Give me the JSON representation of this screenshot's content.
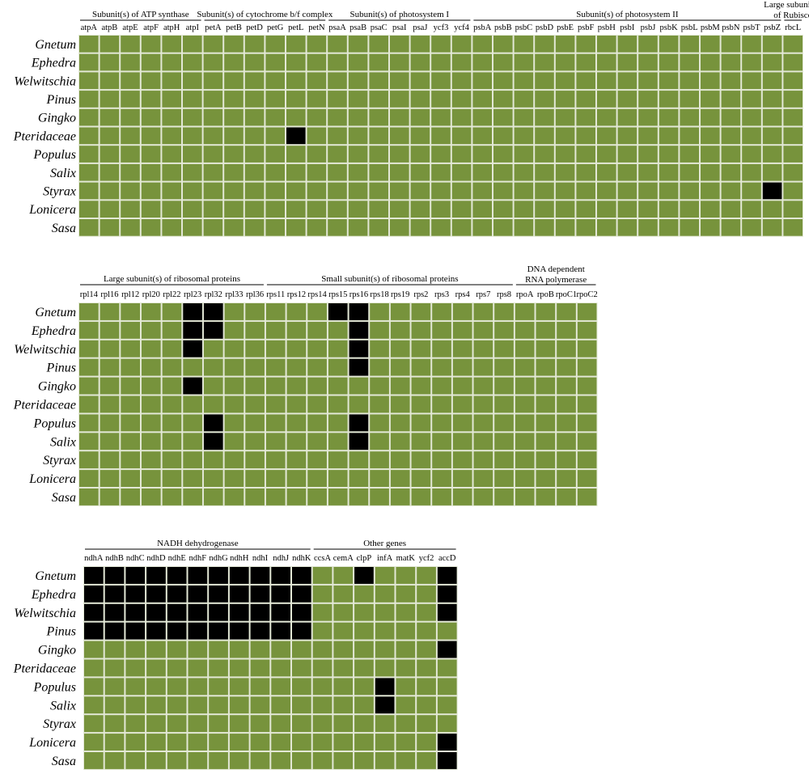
{
  "colors": {
    "present": "#77933C",
    "absent": "#000000",
    "gridline": "#E3E8D6"
  },
  "taxa": [
    "Gnetum",
    "Ephedra",
    "Welwitschia",
    "Pinus",
    "Gingko",
    "Pteridaceae",
    "Populus",
    "Salix",
    "Styrax",
    "Lonicera",
    "Sasa"
  ],
  "panels": [
    {
      "id": "panel-1",
      "groups": [
        {
          "name": "Subunit(s) of ATP synthase",
          "genes": [
            "atpA",
            "atpB",
            "atpE",
            "atpF",
            "atpH",
            "atpI"
          ]
        },
        {
          "name": "Subunit(s) of cytochrome b/f complex",
          "genes": [
            "petA",
            "petB",
            "petD",
            "petG",
            "petL",
            "petN"
          ]
        },
        {
          "name": "Subunit(s) of photosystem I",
          "genes": [
            "psaA",
            "psaB",
            "psaC",
            "psaI",
            "psaJ",
            "ycf3",
            "ycf4"
          ]
        },
        {
          "name": "Subunit(s) of photosystem II",
          "genes": [
            "psbA",
            "psbB",
            "psbC",
            "psbD",
            "psbE",
            "psbF",
            "psbH",
            "psbI",
            "psbJ",
            "psbK",
            "psbL",
            "psbM",
            "psbN",
            "psbT",
            "psbZ"
          ]
        },
        {
          "name": "Large subunit(s) of Rubisco",
          "genes": [
            "rbcL"
          ]
        }
      ],
      "absent": [
        {
          "taxon": "Pteridaceae",
          "gene": "petL"
        },
        {
          "taxon": "Styrax",
          "gene": "psbZ"
        }
      ]
    },
    {
      "id": "panel-2",
      "groups": [
        {
          "name": "Large subunit(s) of ribosomal proteins",
          "genes": [
            "rpl14",
            "rpl16",
            "rpl12",
            "rpl20",
            "rpl22",
            "rpl23",
            "rpl32",
            "rpl33",
            "rpl36"
          ]
        },
        {
          "name": "Small subunit(s) of ribosomal proteins",
          "genes": [
            "rps11",
            "rps12",
            "rps14",
            "rps15",
            "rps16",
            "rps18",
            "rps19",
            "rps2",
            "rps3",
            "rps4",
            "rps7",
            "rps8"
          ]
        },
        {
          "name": "DNA dependent RNA polymerase",
          "genes": [
            "rpoA",
            "rpoB",
            "rpoC1",
            "rpoC2"
          ]
        }
      ],
      "absent": [
        {
          "taxon": "Gnetum",
          "gene": "rpl23"
        },
        {
          "taxon": "Gnetum",
          "gene": "rpl32"
        },
        {
          "taxon": "Gnetum",
          "gene": "rps15"
        },
        {
          "taxon": "Gnetum",
          "gene": "rps16"
        },
        {
          "taxon": "Ephedra",
          "gene": "rpl23"
        },
        {
          "taxon": "Ephedra",
          "gene": "rpl32"
        },
        {
          "taxon": "Ephedra",
          "gene": "rps16"
        },
        {
          "taxon": "Welwitschia",
          "gene": "rpl23"
        },
        {
          "taxon": "Welwitschia",
          "gene": "rps16"
        },
        {
          "taxon": "Pinus",
          "gene": "rps16"
        },
        {
          "taxon": "Gingko",
          "gene": "rpl23"
        },
        {
          "taxon": "Populus",
          "gene": "rpl32"
        },
        {
          "taxon": "Populus",
          "gene": "rps16"
        },
        {
          "taxon": "Salix",
          "gene": "rpl32"
        },
        {
          "taxon": "Salix",
          "gene": "rps16"
        }
      ]
    },
    {
      "id": "panel-3",
      "groups": [
        {
          "name": "NADH dehydrogenase",
          "genes": [
            "ndhA",
            "ndhB",
            "ndhC",
            "ndhD",
            "ndhE",
            "ndhF",
            "ndhG",
            "ndhH",
            "ndhI",
            "ndhJ",
            "ndhK"
          ]
        },
        {
          "name": "Other genes",
          "genes": [
            "ccsA",
            "cemA",
            "clpP",
            "infA",
            "matK",
            "ycf2",
            "accD"
          ]
        }
      ],
      "absent": [
        {
          "taxon": "Gnetum",
          "gene": "ndhA"
        },
        {
          "taxon": "Gnetum",
          "gene": "ndhB"
        },
        {
          "taxon": "Gnetum",
          "gene": "ndhC"
        },
        {
          "taxon": "Gnetum",
          "gene": "ndhD"
        },
        {
          "taxon": "Gnetum",
          "gene": "ndhE"
        },
        {
          "taxon": "Gnetum",
          "gene": "ndhF"
        },
        {
          "taxon": "Gnetum",
          "gene": "ndhG"
        },
        {
          "taxon": "Gnetum",
          "gene": "ndhH"
        },
        {
          "taxon": "Gnetum",
          "gene": "ndhI"
        },
        {
          "taxon": "Gnetum",
          "gene": "ndhJ"
        },
        {
          "taxon": "Gnetum",
          "gene": "ndhK"
        },
        {
          "taxon": "Gnetum",
          "gene": "clpP"
        },
        {
          "taxon": "Gnetum",
          "gene": "accD"
        },
        {
          "taxon": "Ephedra",
          "gene": "ndhA"
        },
        {
          "taxon": "Ephedra",
          "gene": "ndhB"
        },
        {
          "taxon": "Ephedra",
          "gene": "ndhC"
        },
        {
          "taxon": "Ephedra",
          "gene": "ndhD"
        },
        {
          "taxon": "Ephedra",
          "gene": "ndhE"
        },
        {
          "taxon": "Ephedra",
          "gene": "ndhF"
        },
        {
          "taxon": "Ephedra",
          "gene": "ndhG"
        },
        {
          "taxon": "Ephedra",
          "gene": "ndhH"
        },
        {
          "taxon": "Ephedra",
          "gene": "ndhI"
        },
        {
          "taxon": "Ephedra",
          "gene": "ndhJ"
        },
        {
          "taxon": "Ephedra",
          "gene": "ndhK"
        },
        {
          "taxon": "Ephedra",
          "gene": "accD"
        },
        {
          "taxon": "Welwitschia",
          "gene": "ndhA"
        },
        {
          "taxon": "Welwitschia",
          "gene": "ndhB"
        },
        {
          "taxon": "Welwitschia",
          "gene": "ndhC"
        },
        {
          "taxon": "Welwitschia",
          "gene": "ndhD"
        },
        {
          "taxon": "Welwitschia",
          "gene": "ndhE"
        },
        {
          "taxon": "Welwitschia",
          "gene": "ndhF"
        },
        {
          "taxon": "Welwitschia",
          "gene": "ndhG"
        },
        {
          "taxon": "Welwitschia",
          "gene": "ndhH"
        },
        {
          "taxon": "Welwitschia",
          "gene": "ndhI"
        },
        {
          "taxon": "Welwitschia",
          "gene": "ndhJ"
        },
        {
          "taxon": "Welwitschia",
          "gene": "ndhK"
        },
        {
          "taxon": "Welwitschia",
          "gene": "accD"
        },
        {
          "taxon": "Pinus",
          "gene": "ndhA"
        },
        {
          "taxon": "Pinus",
          "gene": "ndhB"
        },
        {
          "taxon": "Pinus",
          "gene": "ndhC"
        },
        {
          "taxon": "Pinus",
          "gene": "ndhD"
        },
        {
          "taxon": "Pinus",
          "gene": "ndhE"
        },
        {
          "taxon": "Pinus",
          "gene": "ndhF"
        },
        {
          "taxon": "Pinus",
          "gene": "ndhG"
        },
        {
          "taxon": "Pinus",
          "gene": "ndhH"
        },
        {
          "taxon": "Pinus",
          "gene": "ndhI"
        },
        {
          "taxon": "Pinus",
          "gene": "ndhJ"
        },
        {
          "taxon": "Pinus",
          "gene": "ndhK"
        },
        {
          "taxon": "Gingko",
          "gene": "accD"
        },
        {
          "taxon": "Populus",
          "gene": "infA"
        },
        {
          "taxon": "Salix",
          "gene": "infA"
        },
        {
          "taxon": "Lonicera",
          "gene": "accD"
        },
        {
          "taxon": "Sasa",
          "gene": "accD"
        }
      ]
    }
  ]
}
